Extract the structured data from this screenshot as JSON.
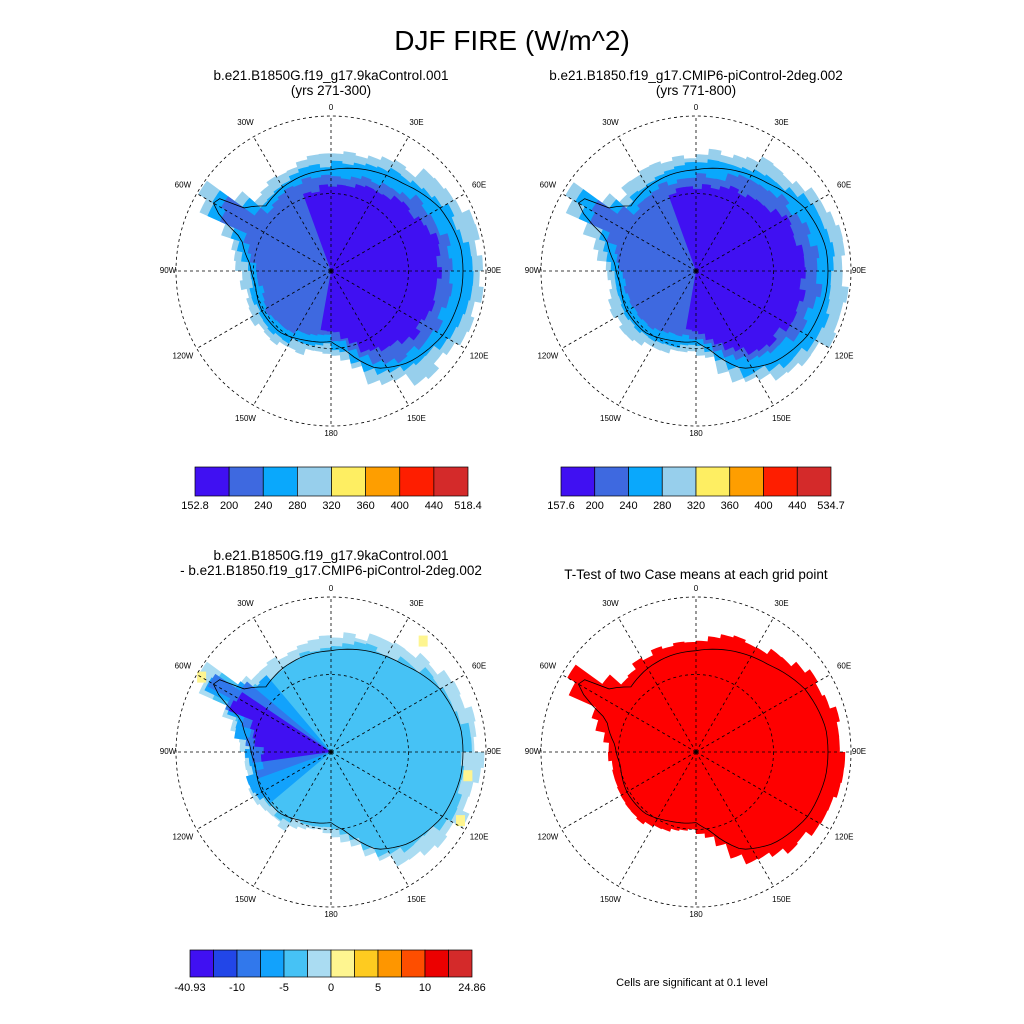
{
  "title": "DJF FIRE (W/m^2)",
  "panels": [
    {
      "title_line1": "b.e21.B1850G.f19_g17.9kaControl.001",
      "title_line2": "(yrs 271-300)"
    },
    {
      "title_line1": "b.e21.B1850.f19_g17.CMIP6-piControl-2deg.002",
      "title_line2": "(yrs 771-800)"
    },
    {
      "title_line1": "b.e21.B1850G.f19_g17.9kaControl.001",
      "title_line2": "- b.e21.B1850.f19_g17.CMIP6-piControl-2deg.002"
    },
    {
      "title_line1": "T-Test of two Case means at each grid point",
      "title_line2": ""
    }
  ],
  "lon_labels": [
    "0",
    "30E",
    "60E",
    "90E",
    "120E",
    "150E",
    "180",
    "150W",
    "120W",
    "90W",
    "60W",
    "30W"
  ],
  "colorbars": [
    {
      "labels": [
        "152.8",
        "200",
        "240",
        "280",
        "320",
        "360",
        "400",
        "440",
        "518.4"
      ],
      "colors": [
        "#4010f2",
        "#3e69e0",
        "#0aa8fc",
        "#97cfec",
        "#feee62",
        "#fe9e00",
        "#fe1e00",
        "#d42a2a"
      ]
    },
    {
      "labels": [
        "157.6",
        "200",
        "240",
        "280",
        "320",
        "360",
        "400",
        "440",
        "534.7"
      ],
      "colors": [
        "#4010f2",
        "#3e69e0",
        "#0aa8fc",
        "#97cfec",
        "#feee62",
        "#fe9e00",
        "#fe1e00",
        "#d42a2a"
      ]
    },
    {
      "labels": [
        "-40.93",
        "-10",
        "-5",
        "0",
        "5",
        "10",
        "24.86"
      ],
      "colors": [
        "#4010f2",
        "#2246e8",
        "#3178ec",
        "#12a2fc",
        "#46c2f5",
        "#aadcf2",
        "#fef590",
        "#fecb20",
        "#fe9600",
        "#fe4e00",
        "#ec0000",
        "#d42a2a"
      ]
    }
  ],
  "significance_note": "Cells are significant at 0.1 level",
  "significance_color": "#fe0000"
}
